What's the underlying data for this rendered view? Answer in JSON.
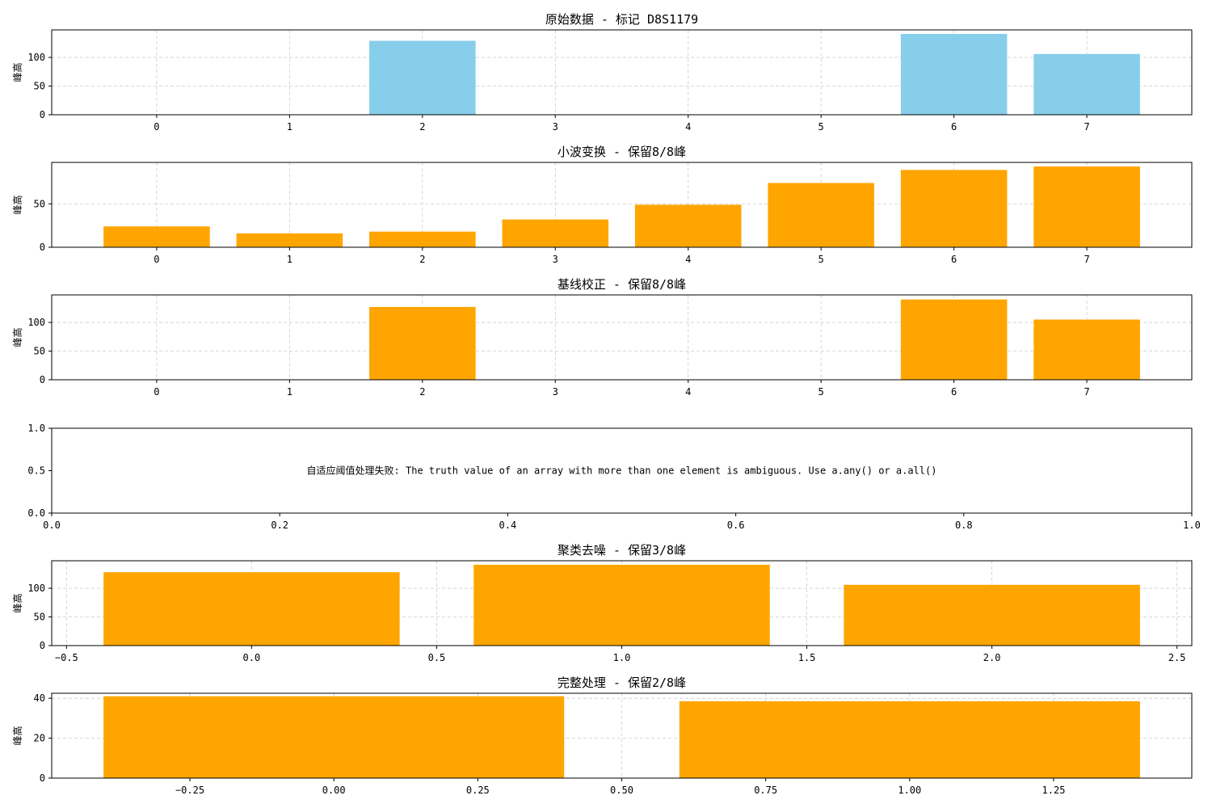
{
  "chart_data": [
    {
      "type": "bar",
      "title": "原始数据 - 标记 D8S1179",
      "ylabel": "峰高",
      "color": "#87CEEB",
      "x": [
        0,
        1,
        2,
        3,
        4,
        5,
        6,
        7
      ],
      "values": [
        0,
        0,
        129,
        0,
        0,
        0,
        141,
        106
      ],
      "bar_width": 0.8,
      "xlim": [
        -0.79,
        7.79
      ],
      "ylim": [
        0,
        148
      ],
      "xticks": [
        0,
        1,
        2,
        3,
        4,
        5,
        6,
        7
      ],
      "xtick_labels": [
        "0",
        "1",
        "2",
        "3",
        "4",
        "5",
        "6",
        "7"
      ],
      "yticks": [
        0,
        50,
        100
      ],
      "ytick_labels": [
        "0",
        "50",
        "100"
      ],
      "grid": true
    },
    {
      "type": "bar",
      "title": "小波变换 - 保留8/8峰",
      "ylabel": "峰高",
      "color": "#FFA500",
      "x": [
        0,
        1,
        2,
        3,
        4,
        5,
        6,
        7
      ],
      "values": [
        24,
        16,
        18,
        32,
        49,
        74,
        89,
        93
      ],
      "bar_width": 0.8,
      "xlim": [
        -0.79,
        7.79
      ],
      "ylim": [
        0,
        97.7
      ],
      "xticks": [
        0,
        1,
        2,
        3,
        4,
        5,
        6,
        7
      ],
      "xtick_labels": [
        "0",
        "1",
        "2",
        "3",
        "4",
        "5",
        "6",
        "7"
      ],
      "yticks": [
        0,
        50
      ],
      "ytick_labels": [
        "0",
        "50"
      ],
      "grid": true
    },
    {
      "type": "bar",
      "title": "基线校正 - 保留8/8峰",
      "ylabel": "峰高",
      "color": "#FFA500",
      "x": [
        0,
        1,
        2,
        3,
        4,
        5,
        6,
        7
      ],
      "values": [
        0,
        0,
        127,
        0,
        0,
        0,
        140,
        105
      ],
      "bar_width": 0.8,
      "xlim": [
        -0.79,
        7.79
      ],
      "ylim": [
        0,
        148
      ],
      "xticks": [
        0,
        1,
        2,
        3,
        4,
        5,
        6,
        7
      ],
      "xtick_labels": [
        "0",
        "1",
        "2",
        "3",
        "4",
        "5",
        "6",
        "7"
      ],
      "yticks": [
        0,
        50,
        100
      ],
      "ytick_labels": [
        "0",
        "50",
        "100"
      ],
      "grid": true
    },
    {
      "type": "text",
      "title": "",
      "ylabel": "",
      "message": "自适应阈值处理失败: The truth value of an array with more than one element is ambiguous. Use a.any() or a.all()",
      "xlim": [
        0,
        1
      ],
      "ylim": [
        0,
        1
      ],
      "xticks": [
        0,
        0.2,
        0.4,
        0.6,
        0.8,
        1.0
      ],
      "xtick_labels": [
        "0.0",
        "0.2",
        "0.4",
        "0.6",
        "0.8",
        "1.0"
      ],
      "yticks": [
        0,
        0.5,
        1.0
      ],
      "ytick_labels": [
        "0.0",
        "0.5",
        "1.0"
      ],
      "grid": false
    },
    {
      "type": "bar",
      "title": "聚类去噪 - 保留3/8峰",
      "ylabel": "峰高",
      "color": "#FFA500",
      "x": [
        0,
        1,
        2
      ],
      "values": [
        128,
        141,
        106
      ],
      "bar_width": 0.8,
      "xlim": [
        -0.54,
        2.54
      ],
      "ylim": [
        0,
        148
      ],
      "xticks": [
        -0.5,
        0.0,
        0.5,
        1.0,
        1.5,
        2.0,
        2.5
      ],
      "xtick_labels": [
        "−0.5",
        "0.0",
        "0.5",
        "1.0",
        "1.5",
        "2.0",
        "2.5"
      ],
      "yticks": [
        0,
        50,
        100
      ],
      "ytick_labels": [
        "0",
        "50",
        "100"
      ],
      "grid": true
    },
    {
      "type": "bar",
      "title": "完整处理 - 保留2/8峰",
      "ylabel": "峰高",
      "color": "#FFA500",
      "x": [
        0,
        1
      ],
      "values": [
        41,
        38.5
      ],
      "bar_width": 0.8,
      "xlim": [
        -0.49,
        1.49
      ],
      "ylim": [
        0,
        42.5
      ],
      "xticks": [
        -0.25,
        0.0,
        0.25,
        0.5,
        0.75,
        1.0,
        1.25
      ],
      "xtick_labels": [
        "−0.25",
        "0.00",
        "0.25",
        "0.50",
        "0.75",
        "1.00",
        "1.25"
      ],
      "yticks": [
        0,
        20,
        40
      ],
      "ytick_labels": [
        "0",
        "20",
        "40"
      ],
      "grid": true
    }
  ]
}
